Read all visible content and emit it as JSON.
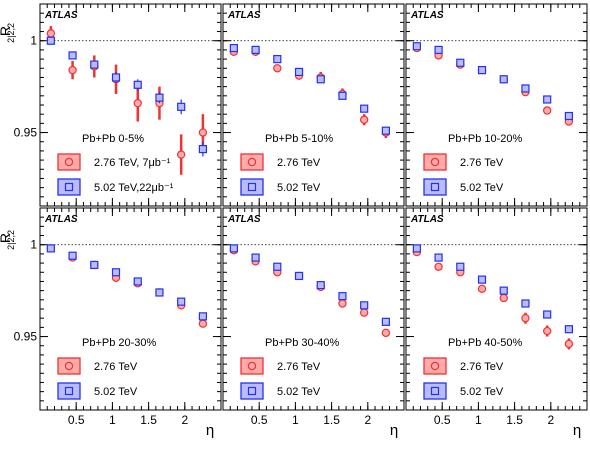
{
  "chart_data": [
    {
      "type": "scatter",
      "experiment": "ATLAS",
      "centrality": "Pb+Pb 0-5%",
      "ylabel": "R2|2;2",
      "xlabel": "",
      "series": [
        {
          "name": "2.76 TeV, 7μb⁻¹",
          "x": [
            0.15,
            0.45,
            0.75,
            1.05,
            1.35,
            1.65,
            1.95,
            2.25
          ],
          "y": [
            1.004,
            0.984,
            0.986,
            0.979,
            0.966,
            0.966,
            0.938,
            0.95
          ],
          "err": [
            0.004,
            0.005,
            0.006,
            0.008,
            0.01,
            0.009,
            0.011,
            0.01
          ]
        },
        {
          "name": "5.02 TeV,22μb⁻¹",
          "x": [
            0.15,
            0.45,
            0.75,
            1.05,
            1.35,
            1.65,
            1.95,
            2.25
          ],
          "y": [
            1.0,
            0.992,
            0.987,
            0.98,
            0.976,
            0.969,
            0.964,
            0.941
          ],
          "err": [
            0.002,
            0.002,
            0.002,
            0.003,
            0.003,
            0.003,
            0.004,
            0.004
          ]
        }
      ]
    },
    {
      "type": "scatter",
      "experiment": "ATLAS",
      "centrality": "Pb+Pb 5-10%",
      "series": [
        {
          "name": "2.76 TeV",
          "x": [
            0.15,
            0.45,
            0.75,
            1.05,
            1.35,
            1.65,
            1.95,
            2.25
          ],
          "y": [
            0.994,
            0.994,
            0.985,
            0.981,
            0.98,
            0.971,
            0.957,
            0.95
          ],
          "err": [
            0.002,
            0.002,
            0.002,
            0.002,
            0.003,
            0.003,
            0.003,
            0.003
          ]
        },
        {
          "name": "5.02 TeV",
          "x": [
            0.15,
            0.45,
            0.75,
            1.05,
            1.35,
            1.65,
            1.95,
            2.25
          ],
          "y": [
            0.996,
            0.995,
            0.99,
            0.983,
            0.979,
            0.97,
            0.963,
            0.951
          ],
          "err": [
            0.001,
            0.001,
            0.001,
            0.001,
            0.001,
            0.001,
            0.001,
            0.001
          ]
        }
      ]
    },
    {
      "type": "scatter",
      "experiment": "ATLAS",
      "centrality": "Pb+Pb 10-20%",
      "series": [
        {
          "name": "2.76 TeV",
          "x": [
            0.15,
            0.45,
            0.75,
            1.05,
            1.35,
            1.65,
            1.95,
            2.25
          ],
          "y": [
            0.996,
            0.992,
            0.987,
            0.984,
            0.979,
            0.972,
            0.962,
            0.956
          ],
          "err": [
            0.001,
            0.001,
            0.001,
            0.001,
            0.001,
            0.002,
            0.002,
            0.002
          ]
        },
        {
          "name": "5.02 TeV",
          "x": [
            0.15,
            0.45,
            0.75,
            1.05,
            1.35,
            1.65,
            1.95,
            2.25
          ],
          "y": [
            0.997,
            0.995,
            0.988,
            0.984,
            0.979,
            0.974,
            0.968,
            0.959
          ],
          "err": [
            0.001,
            0.001,
            0.001,
            0.001,
            0.001,
            0.001,
            0.001,
            0.001
          ]
        }
      ]
    },
    {
      "type": "scatter",
      "experiment": "ATLAS",
      "centrality": "Pb+Pb 20-30%",
      "ylabel": "R2|2;2",
      "xlabel": "η",
      "series": [
        {
          "name": "2.76 TeV",
          "x": [
            0.15,
            0.45,
            0.75,
            1.05,
            1.35,
            1.65,
            1.95,
            2.25
          ],
          "y": [
            0.998,
            0.993,
            0.989,
            0.982,
            0.979,
            0.974,
            0.967,
            0.957
          ],
          "err": [
            0.001,
            0.001,
            0.001,
            0.001,
            0.001,
            0.001,
            0.001,
            0.002
          ]
        },
        {
          "name": "5.02 TeV",
          "x": [
            0.15,
            0.45,
            0.75,
            1.05,
            1.35,
            1.65,
            1.95,
            2.25
          ],
          "y": [
            0.998,
            0.994,
            0.989,
            0.985,
            0.98,
            0.974,
            0.969,
            0.961
          ],
          "err": [
            0.001,
            0.001,
            0.001,
            0.001,
            0.001,
            0.001,
            0.001,
            0.001
          ]
        }
      ]
    },
    {
      "type": "scatter",
      "experiment": "ATLAS",
      "centrality": "Pb+Pb 30-40%",
      "xlabel": "η",
      "series": [
        {
          "name": "2.76 TeV",
          "x": [
            0.15,
            0.45,
            0.75,
            1.05,
            1.35,
            1.65,
            1.95,
            2.25
          ],
          "y": [
            0.997,
            0.991,
            0.985,
            0.983,
            0.977,
            0.968,
            0.963,
            0.952
          ],
          "err": [
            0.001,
            0.001,
            0.001,
            0.001,
            0.001,
            0.001,
            0.001,
            0.002
          ]
        },
        {
          "name": "5.02 TeV",
          "x": [
            0.15,
            0.45,
            0.75,
            1.05,
            1.35,
            1.65,
            1.95,
            2.25
          ],
          "y": [
            0.998,
            0.993,
            0.988,
            0.983,
            0.978,
            0.972,
            0.967,
            0.958
          ],
          "err": [
            0.001,
            0.001,
            0.001,
            0.001,
            0.001,
            0.001,
            0.001,
            0.001
          ]
        }
      ]
    },
    {
      "type": "scatter",
      "experiment": "ATLAS",
      "centrality": "Pb+Pb 40-50%",
      "xlabel": "η",
      "series": [
        {
          "name": "2.76 TeV",
          "x": [
            0.15,
            0.45,
            0.75,
            1.05,
            1.35,
            1.65,
            1.95,
            2.25
          ],
          "y": [
            0.996,
            0.988,
            0.985,
            0.976,
            0.971,
            0.96,
            0.953,
            0.946
          ],
          "err": [
            0.001,
            0.001,
            0.002,
            0.002,
            0.002,
            0.003,
            0.003,
            0.003
          ]
        },
        {
          "name": "5.02 TeV",
          "x": [
            0.15,
            0.45,
            0.75,
            1.05,
            1.35,
            1.65,
            1.95,
            2.25
          ],
          "y": [
            0.998,
            0.993,
            0.988,
            0.981,
            0.975,
            0.968,
            0.962,
            0.954
          ],
          "err": [
            0.001,
            0.001,
            0.001,
            0.001,
            0.001,
            0.001,
            0.001,
            0.001
          ]
        }
      ]
    }
  ],
  "axes": {
    "ylabel_main": "R",
    "ylabel_sub": "2|2;2",
    "xlabel": "η",
    "xlim": [
      0,
      2.5
    ],
    "ylim": [
      0.91,
      1.02
    ],
    "yticks": [
      1,
      0.95
    ],
    "ytick_labels": [
      "1",
      "0.95"
    ],
    "xticks": [
      0.5,
      1,
      1.5,
      2
    ],
    "xtick_labels": [
      "0.5",
      "1",
      "1.5",
      "2"
    ],
    "reference_line": 1
  },
  "colors": {
    "red_edge": "#ee3333",
    "red_fill": "#ffaaaa",
    "blue_edge": "#2233ee",
    "blue_fill": "#bbbbff"
  }
}
